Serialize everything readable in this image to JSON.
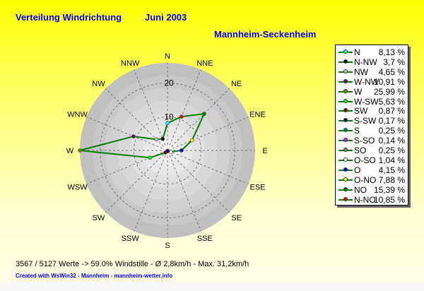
{
  "title": "Verteilung Windrichtung",
  "period": "Juni 2003",
  "station": "Mannheim-Seckenheim",
  "footer": {
    "stats": "3567 / 5127 Werte  -> 59.0% Windstille   -   Ø 2,8km/h  -  Max. 31,2km/h",
    "credit": "Created with WsWin32  -  Mannheim  -  mannheim-wetter.info"
  },
  "chart_data": {
    "type": "radar",
    "axis_labels": [
      "N",
      "NNE",
      "NE",
      "ENE",
      "E",
      "ESE",
      "SE",
      "SSE",
      "S",
      "SSW",
      "SW",
      "WSW",
      "W",
      "WNW",
      "NW",
      "NNW"
    ],
    "tick_labels": [
      "10",
      "20"
    ],
    "rmax": 26,
    "line_color": "#008000",
    "values": [
      8.13,
      10.85,
      15.39,
      7.88,
      4.15,
      1.04,
      0.25,
      0.14,
      0.25,
      0.17,
      0.87,
      5.63,
      25.99,
      10.91,
      4.65,
      3.7
    ],
    "point_colors": [
      "#00ffff",
      "#ff0000",
      "#008000",
      "#ffff00",
      "#0000ff",
      "#ffffff",
      "#808080",
      "#ff00ff",
      "#008080",
      "#000080",
      "#800000",
      "#00ff00",
      "#808000",
      "#800080",
      "#c0c0c0",
      "#000000"
    ],
    "legend": [
      {
        "name": "N",
        "value": "8,13 %",
        "color": "#00ffff"
      },
      {
        "name": "N-NW",
        "value": "3,7 %",
        "color": "#000000"
      },
      {
        "name": "NW",
        "value": "4,65 %",
        "color": "#c0c0c0"
      },
      {
        "name": "W-NW",
        "value": "10,91 %",
        "color": "#800080"
      },
      {
        "name": "W",
        "value": "25,99 %",
        "color": "#808000"
      },
      {
        "name": "W-SW",
        "value": "5,63 %",
        "color": "#00ff00"
      },
      {
        "name": "SW",
        "value": "0,87 %",
        "color": "#800000"
      },
      {
        "name": "S-SW",
        "value": "0,17 %",
        "color": "#000080"
      },
      {
        "name": "S",
        "value": "0,25 %",
        "color": "#008080"
      },
      {
        "name": "S-SO",
        "value": "0,14 %",
        "color": "#ff00ff"
      },
      {
        "name": "SO",
        "value": "0,25 %",
        "color": "#808080"
      },
      {
        "name": "O-SO",
        "value": "1,04 %",
        "color": "#ffffff"
      },
      {
        "name": "O",
        "value": "4,15 %",
        "color": "#0000ff"
      },
      {
        "name": "O-NO",
        "value": "7,88 %",
        "color": "#ffff00"
      },
      {
        "name": "NO",
        "value": "15,39 %",
        "color": "#008000"
      },
      {
        "name": "N-NO",
        "value": "10,85 %",
        "color": "#ff0000"
      }
    ]
  }
}
